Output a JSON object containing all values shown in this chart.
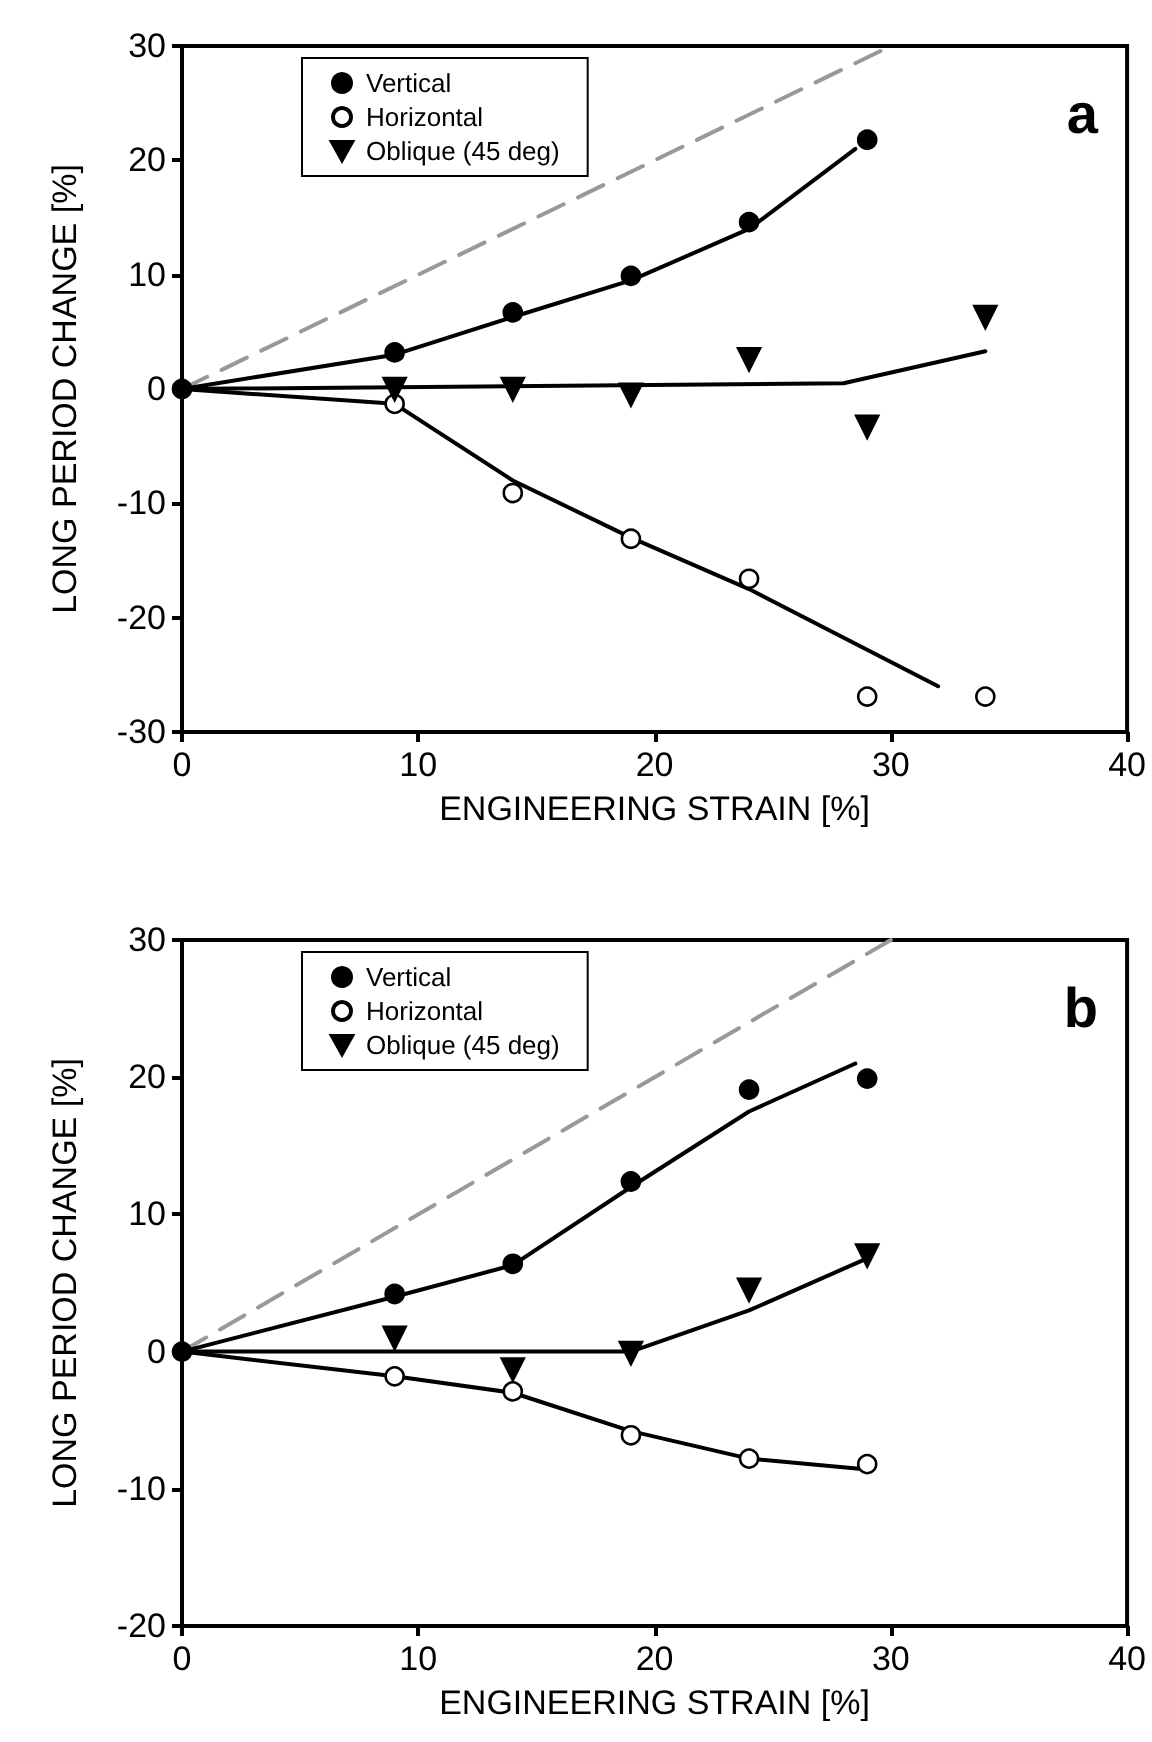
{
  "chart_data": [
    {
      "type": "scatter",
      "xlabel": "ENGINEERING STRAIN [%]",
      "ylabel": "LONG PERIOD CHANGE [%]",
      "annotations": [
        "a"
      ],
      "xlim": [
        0,
        40
      ],
      "xticks": [
        0,
        10,
        20,
        30,
        40
      ],
      "ylim": [
        -30,
        30
      ],
      "yticks": [
        -30,
        -20,
        -10,
        0,
        10,
        20,
        30
      ],
      "grid": false,
      "legend": "top left",
      "series": [
        {
          "type": "line",
          "color": "#999999",
          "line_style": "dashed",
          "marker": "none",
          "x": [
            0,
            30
          ],
          "values": [
            0,
            30
          ]
        },
        {
          "type": "line",
          "color": "#000000",
          "line_style": "solid",
          "marker": "none",
          "x": [
            0,
            9,
            14,
            19,
            24,
            28.5
          ],
          "values": [
            0,
            3,
            6.3,
            9.5,
            14,
            21
          ]
        },
        {
          "type": "line",
          "color": "#000000",
          "line_style": "solid",
          "marker": "none",
          "x": [
            0,
            9,
            14,
            19,
            24,
            32
          ],
          "values": [
            0,
            -1.3,
            -8,
            -13,
            -17.5,
            -26
          ]
        },
        {
          "type": "line",
          "color": "#000000",
          "line_style": "solid",
          "marker": "none",
          "x": [
            0,
            28,
            34
          ],
          "values": [
            0,
            0.5,
            3.3
          ]
        },
        {
          "name": "Vertical",
          "color": "#000000",
          "marker": "circle",
          "x": [
            0,
            9,
            14,
            19,
            24,
            29
          ],
          "values": [
            0,
            3.2,
            6.7,
            9.9,
            14.6,
            21.8
          ]
        },
        {
          "name": "Horizontal",
          "color": "#ffffff",
          "marker": "circle",
          "x": [
            9,
            14,
            19,
            24,
            29,
            34
          ],
          "values": [
            -1.3,
            -9.1,
            -13.1,
            -16.6,
            -26.9,
            -26.9
          ]
        },
        {
          "name": "Oblique (45 deg)",
          "color": "#000000",
          "marker": "triangle",
          "x": [
            9,
            14,
            19,
            24,
            29,
            34
          ],
          "values": [
            0,
            0,
            -0.5,
            2.6,
            -3.3,
            6.3
          ]
        }
      ]
    },
    {
      "type": "scatter",
      "xlabel": "ENGINEERING STRAIN [%]",
      "ylabel": "LONG PERIOD CHANGE [%]",
      "annotations": [
        "b"
      ],
      "xlim": [
        0,
        40
      ],
      "xticks": [
        0,
        10,
        20,
        30,
        40
      ],
      "ylim": [
        -20,
        30
      ],
      "yticks": [
        -20,
        -10,
        0,
        10,
        20,
        30
      ],
      "grid": false,
      "legend": "top left",
      "series": [
        {
          "type": "line",
          "color": "#999999",
          "line_style": "dashed",
          "marker": "none",
          "x": [
            0,
            30
          ],
          "values": [
            0,
            30
          ]
        },
        {
          "type": "line",
          "color": "#000000",
          "line_style": "solid",
          "marker": "none",
          "x": [
            0,
            9,
            14,
            19,
            24,
            28.5
          ],
          "values": [
            0,
            4,
            6.3,
            12,
            17.5,
            21
          ]
        },
        {
          "type": "line",
          "color": "#000000",
          "line_style": "solid",
          "marker": "none",
          "x": [
            0,
            9,
            14,
            19,
            24,
            29
          ],
          "values": [
            0,
            -1.8,
            -3,
            -5.8,
            -7.8,
            -8.6
          ]
        },
        {
          "type": "line",
          "color": "#000000",
          "line_style": "solid",
          "marker": "none",
          "x": [
            0,
            19,
            24,
            29
          ],
          "values": [
            0,
            0,
            3,
            6.8
          ]
        },
        {
          "name": "Vertical",
          "color": "#000000",
          "marker": "circle",
          "x": [
            0,
            9,
            14,
            19,
            24,
            29
          ],
          "values": [
            0,
            4.2,
            6.4,
            12.4,
            19.1,
            19.9
          ]
        },
        {
          "name": "Horizontal",
          "color": "#ffffff",
          "marker": "circle",
          "x": [
            9,
            14,
            19,
            24,
            29
          ],
          "values": [
            -1.8,
            -2.9,
            -6.1,
            -7.8,
            -8.2
          ]
        },
        {
          "name": "Oblique (45 deg)",
          "color": "#000000",
          "marker": "triangle",
          "x": [
            9,
            14,
            19,
            24,
            29
          ],
          "values": [
            1,
            -1.3,
            -0.1,
            4.5,
            7
          ]
        }
      ]
    }
  ]
}
